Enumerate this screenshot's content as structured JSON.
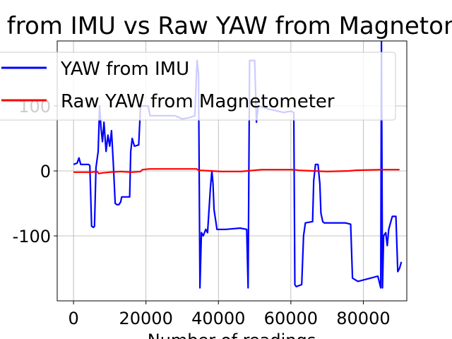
{
  "chart_data": {
    "type": "line",
    "title": "YAW from IMU vs Raw YAW from Magnetometer",
    "xlabel": "Number of readings",
    "ylabel": "",
    "xlim": [
      -4500,
      92000
    ],
    "ylim": [
      -200,
      200
    ],
    "xticks": [
      0,
      20000,
      40000,
      60000,
      80000
    ],
    "yticks": [
      -100,
      0,
      100
    ],
    "grid": true,
    "legend_position": "top-left",
    "series": [
      {
        "name": "YAW from IMU",
        "color": "#0000ff",
        "points": [
          [
            0,
            10
          ],
          [
            1000,
            12
          ],
          [
            1500,
            20
          ],
          [
            2000,
            10
          ],
          [
            4200,
            10
          ],
          [
            4500,
            8
          ],
          [
            5000,
            -85
          ],
          [
            5500,
            -87
          ],
          [
            5800,
            -85
          ],
          [
            6200,
            5
          ],
          [
            6800,
            30
          ],
          [
            7200,
            100
          ],
          [
            7600,
            65
          ],
          [
            8000,
            45
          ],
          [
            8400,
            75
          ],
          [
            9000,
            30
          ],
          [
            9500,
            55
          ],
          [
            10000,
            38
          ],
          [
            10500,
            62
          ],
          [
            11000,
            10
          ],
          [
            11500,
            -50
          ],
          [
            12000,
            -52
          ],
          [
            12500,
            -52
          ],
          [
            13000,
            -48
          ],
          [
            13300,
            -40
          ],
          [
            15500,
            -40
          ],
          [
            15800,
            30
          ],
          [
            16200,
            50
          ],
          [
            16800,
            38
          ],
          [
            18000,
            40
          ],
          [
            18500,
            100
          ],
          [
            19000,
            100
          ],
          [
            20000,
            100
          ],
          [
            20600,
            100
          ],
          [
            21100,
            85
          ],
          [
            28000,
            85
          ],
          [
            30000,
            80
          ],
          [
            32000,
            82
          ],
          [
            33500,
            85
          ],
          [
            34100,
            170
          ],
          [
            34500,
            150
          ],
          [
            34900,
            -180
          ],
          [
            35300,
            -95
          ],
          [
            35800,
            -100
          ],
          [
            36500,
            -90
          ],
          [
            37000,
            -95
          ],
          [
            37800,
            -25
          ],
          [
            38200,
            0
          ],
          [
            38500,
            -20
          ],
          [
            38800,
            -60
          ],
          [
            39200,
            -75
          ],
          [
            39600,
            -90
          ],
          [
            42000,
            -90
          ],
          [
            46000,
            -88
          ],
          [
            47800,
            -90
          ],
          [
            48200,
            -180
          ],
          [
            48600,
            170
          ],
          [
            50000,
            170
          ],
          [
            50500,
            75
          ],
          [
            51000,
            100
          ],
          [
            54000,
            95
          ],
          [
            58000,
            90
          ],
          [
            60000,
            92
          ],
          [
            60800,
            90
          ],
          [
            61100,
            -175
          ],
          [
            61500,
            -178
          ],
          [
            63000,
            -175
          ],
          [
            63500,
            -100
          ],
          [
            64000,
            -80
          ],
          [
            66000,
            -78
          ],
          [
            66300,
            -15
          ],
          [
            66800,
            10
          ],
          [
            67500,
            10
          ],
          [
            68000,
            -20
          ],
          [
            68300,
            -65
          ],
          [
            68800,
            -78
          ],
          [
            69200,
            -80
          ],
          [
            75000,
            -80
          ],
          [
            76500,
            -82
          ],
          [
            77000,
            -165
          ],
          [
            78500,
            -170
          ],
          [
            82000,
            -165
          ],
          [
            84000,
            -162
          ],
          [
            84800,
            -180
          ],
          [
            85000,
            200
          ],
          [
            85300,
            -180
          ],
          [
            85600,
            -100
          ],
          [
            86200,
            -95
          ],
          [
            86600,
            -115
          ],
          [
            87000,
            -90
          ],
          [
            87500,
            -80
          ],
          [
            88000,
            -70
          ],
          [
            89000,
            -70
          ],
          [
            89500,
            -155
          ],
          [
            90000,
            -150
          ],
          [
            90500,
            -140
          ]
        ]
      },
      {
        "name": "Raw YAW from Magnetometer",
        "color": "#ff0000",
        "points": [
          [
            0,
            -2
          ],
          [
            5000,
            -2
          ],
          [
            6500,
            -1
          ],
          [
            7000,
            -4
          ],
          [
            8000,
            -3
          ],
          [
            10000,
            -2
          ],
          [
            13000,
            -1
          ],
          [
            16000,
            -2
          ],
          [
            18500,
            -1
          ],
          [
            19000,
            2
          ],
          [
            21000,
            3
          ],
          [
            34000,
            3
          ],
          [
            34500,
            1
          ],
          [
            38000,
            0
          ],
          [
            41000,
            -1
          ],
          [
            46000,
            -1
          ],
          [
            48000,
            0
          ],
          [
            52000,
            2
          ],
          [
            61000,
            2
          ],
          [
            62000,
            1
          ],
          [
            66000,
            0
          ],
          [
            70000,
            -1
          ],
          [
            76000,
            0
          ],
          [
            78000,
            1
          ],
          [
            85000,
            2
          ],
          [
            88000,
            2
          ],
          [
            90000,
            2
          ]
        ]
      }
    ]
  }
}
